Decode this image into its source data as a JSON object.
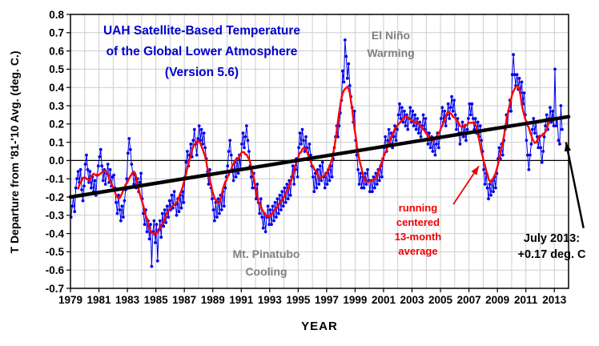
{
  "chart_data": {
    "type": "line",
    "title_lines": [
      "UAH Satellite-Based Temperature",
      "of the Global Lower Atmosphere",
      "(Version 5.6)"
    ],
    "title_color": "#0000CC",
    "xlabel": "YEAR",
    "ylabel": "T Departure from '81-'10 Avg. (deg. C.)",
    "xlim": [
      1979,
      2014
    ],
    "ylim": [
      -0.7,
      0.8
    ],
    "grid": true,
    "xtick_labels": [
      "1979",
      "1981",
      "1983",
      "1985",
      "1987",
      "1989",
      "1991",
      "1993",
      "1995",
      "1997",
      "1999",
      "2001",
      "2003",
      "2005",
      "2007",
      "2009",
      "2011",
      "2013"
    ],
    "ytick_labels": [
      "0.8",
      "0.7",
      "0.6",
      "0.5",
      "0.4",
      "0.3",
      "0.2",
      "0.1",
      "0.0",
      "-0.1",
      "-0.2",
      "-0.3",
      "-0.4",
      "-0.5",
      "-0.6",
      "-0.7"
    ],
    "series": [
      {
        "name": "monthly temperature anomaly",
        "type": "line+markers",
        "color": "#0000EE",
        "start_year": 1979,
        "start_month": 1,
        "values": [
          -0.31,
          -0.25,
          -0.2,
          -0.28,
          -0.15,
          -0.1,
          -0.06,
          -0.12,
          -0.05,
          -0.16,
          -0.22,
          -0.14,
          -0.02,
          0.03,
          -0.05,
          -0.12,
          -0.06,
          -0.15,
          -0.09,
          -0.17,
          -0.11,
          -0.19,
          -0.08,
          -0.03,
          0.02,
          0.06,
          -0.03,
          -0.11,
          -0.05,
          -0.13,
          -0.07,
          -0.02,
          -0.12,
          -0.05,
          -0.14,
          -0.09,
          -0.08,
          -0.15,
          -0.23,
          -0.29,
          -0.19,
          -0.27,
          -0.33,
          -0.25,
          -0.31,
          -0.22,
          -0.16,
          -0.1,
          0.04,
          0.12,
          0.06,
          -0.02,
          -0.07,
          -0.13,
          -0.08,
          -0.15,
          -0.1,
          -0.17,
          -0.12,
          -0.07,
          -0.21,
          -0.29,
          -0.35,
          -0.27,
          -0.39,
          -0.33,
          -0.43,
          -0.35,
          -0.58,
          -0.39,
          -0.33,
          -0.45,
          -0.35,
          -0.55,
          -0.38,
          -0.33,
          -0.42,
          -0.29,
          -0.36,
          -0.27,
          -0.34,
          -0.25,
          -0.31,
          -0.22,
          -0.27,
          -0.19,
          -0.26,
          -0.17,
          -0.24,
          -0.3,
          -0.21,
          -0.28,
          -0.19,
          -0.26,
          -0.17,
          -0.23,
          -0.09,
          -0.01,
          0.05,
          -0.03,
          0.03,
          0.09,
          0.02,
          0.11,
          0.17,
          0.09,
          0.03,
          0.12,
          0.19,
          0.11,
          0.17,
          0.09,
          0.15,
          0.07,
          0.01,
          -0.06,
          -0.13,
          -0.05,
          -0.15,
          -0.21,
          -0.27,
          -0.33,
          -0.23,
          -0.31,
          -0.21,
          -0.29,
          -0.19,
          -0.27,
          -0.17,
          -0.25,
          -0.15,
          -0.09,
          -0.03,
          0.05,
          0.11,
          0.03,
          -0.05,
          -0.11,
          -0.01,
          -0.09,
          0.01,
          -0.07,
          0.03,
          -0.05,
          0.09,
          0.15,
          0.07,
          0.13,
          0.19,
          0.11,
          0.05,
          -0.03,
          -0.09,
          -0.15,
          -0.07,
          -0.15,
          -0.21,
          -0.13,
          -0.23,
          -0.29,
          -0.21,
          -0.31,
          -0.37,
          -0.29,
          -0.39,
          -0.31,
          -0.25,
          -0.35,
          -0.27,
          -0.35,
          -0.25,
          -0.33,
          -0.23,
          -0.31,
          -0.21,
          -0.29,
          -0.19,
          -0.27,
          -0.17,
          -0.25,
          -0.15,
          -0.23,
          -0.13,
          -0.21,
          -0.11,
          -0.19,
          -0.09,
          -0.03,
          -0.13,
          -0.05,
          0.01,
          -0.09,
          0.07,
          0.15,
          0.09,
          0.17,
          0.11,
          0.05,
          0.13,
          0.07,
          0.01,
          0.09,
          0.03,
          -0.03,
          -0.09,
          -0.17,
          -0.07,
          -0.15,
          -0.05,
          -0.13,
          -0.03,
          -0.11,
          -0.01,
          -0.09,
          -0.15,
          -0.07,
          -0.13,
          -0.05,
          -0.11,
          -0.03,
          -0.09,
          0.01,
          0.07,
          0.13,
          0.19,
          0.13,
          0.19,
          0.26,
          0.33,
          0.49,
          0.43,
          0.66,
          0.57,
          0.45,
          0.53,
          0.41,
          0.35,
          0.29,
          0.21,
          0.27,
          0.11,
          0.03,
          -0.05,
          -0.13,
          -0.07,
          -0.15,
          -0.09,
          -0.15,
          -0.07,
          -0.13,
          -0.05,
          -0.11,
          -0.17,
          -0.11,
          -0.17,
          -0.09,
          -0.15,
          -0.07,
          -0.13,
          -0.05,
          -0.11,
          -0.03,
          -0.09,
          0.01,
          0.07,
          0.13,
          0.05,
          0.11,
          0.17,
          0.09,
          0.15,
          0.07,
          0.13,
          0.19,
          0.11,
          0.17,
          0.25,
          0.31,
          0.23,
          0.29,
          0.21,
          0.27,
          0.19,
          0.25,
          0.17,
          0.23,
          0.29,
          0.21,
          0.27,
          0.19,
          0.25,
          0.17,
          0.23,
          0.15,
          0.21,
          0.13,
          0.19,
          0.25,
          0.17,
          0.23,
          0.15,
          0.09,
          0.15,
          0.07,
          0.13,
          0.05,
          0.11,
          0.03,
          0.09,
          0.15,
          0.07,
          0.13,
          0.23,
          0.29,
          0.21,
          0.27,
          0.19,
          0.25,
          0.31,
          0.23,
          0.29,
          0.35,
          0.27,
          0.33,
          0.25,
          0.17,
          0.23,
          0.15,
          0.09,
          0.15,
          0.21,
          0.13,
          0.19,
          0.11,
          0.17,
          0.23,
          0.31,
          0.25,
          0.31,
          0.23,
          0.17,
          0.23,
          0.15,
          0.21,
          0.13,
          0.19,
          0.11,
          0.05,
          -0.05,
          -0.13,
          -0.07,
          -0.15,
          -0.21,
          -0.13,
          -0.19,
          -0.11,
          -0.17,
          -0.09,
          -0.15,
          -0.07,
          0.01,
          0.07,
          0.01,
          0.09,
          0.03,
          0.11,
          0.17,
          0.25,
          0.19,
          0.27,
          0.33,
          0.27,
          0.47,
          0.58,
          0.47,
          0.41,
          0.47,
          0.39,
          0.45,
          0.37,
          0.43,
          0.31,
          0.37,
          0.25,
          0.11,
          0.03,
          -0.05,
          0.03,
          0.09,
          0.17,
          0.23,
          0.15,
          0.21,
          0.13,
          0.07,
          0.13,
          0.07,
          -0.01,
          0.05,
          0.13,
          0.19,
          0.25,
          0.17,
          0.23,
          0.29,
          0.21,
          0.27,
          0.19,
          0.5,
          0.19,
          0.23,
          0.11,
          0.09,
          0.3,
          0.17
        ]
      },
      {
        "name": "running centered 13-month average",
        "type": "derived-running-mean",
        "window": 13,
        "color": "#FF0000"
      },
      {
        "name": "linear trend",
        "type": "line",
        "color": "#000000",
        "x": [
          1979,
          2014
        ],
        "y": [
          -0.2,
          0.24
        ]
      }
    ],
    "annotations": [
      {
        "name": "el-nino-label",
        "lines": [
          "El Niño",
          "Warming"
        ],
        "color": "#808080"
      },
      {
        "name": "pinatubo-label",
        "lines": [
          "Mt. Pinatubo",
          "Cooling"
        ],
        "color": "#808080"
      },
      {
        "name": "running-average-label",
        "lines": [
          "running",
          "centered",
          "13-month",
          "average"
        ],
        "color": "#EE0000"
      },
      {
        "name": "july-2013-label",
        "lines": [
          "July 2013:",
          "+0.17 deg. C"
        ],
        "color": "#000000"
      }
    ],
    "arrows": [
      {
        "name": "running-average-arrow",
        "color": "#EE0000",
        "from": [
          2005.9,
          -0.24
        ],
        "to": [
          2007.7,
          -0.03
        ],
        "width": 1.8
      },
      {
        "name": "july-2013-arrow",
        "color": "#000000",
        "from": [
          2015.05,
          -0.37
        ],
        "to": [
          2013.82,
          0.1
        ],
        "width": 2.5
      }
    ],
    "last_point": {
      "label": "July 2013",
      "value": 0.17
    }
  }
}
